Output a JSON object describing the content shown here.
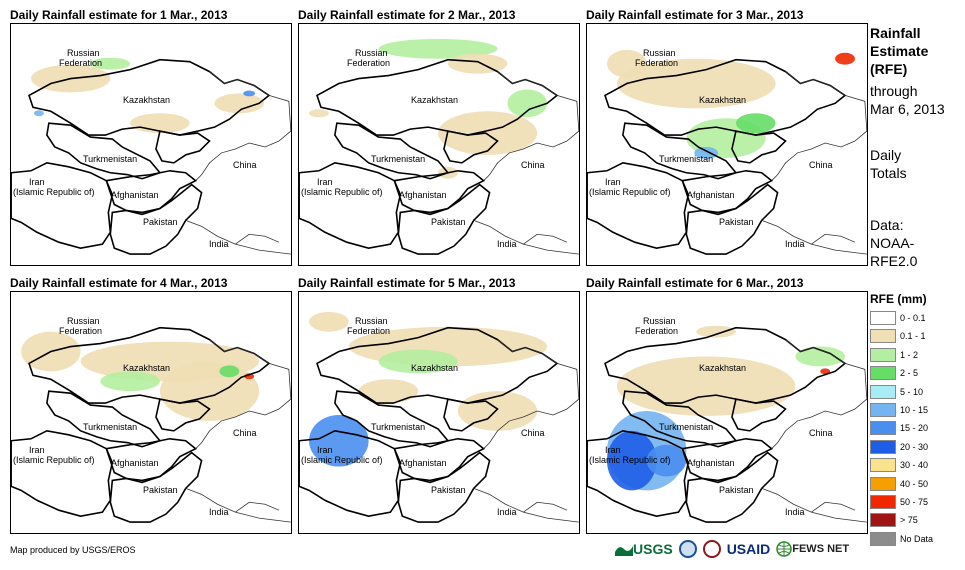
{
  "panels": [
    {
      "title": "Daily Rainfall estimate for 1 Mar., 2013"
    },
    {
      "title": "Daily Rainfall estimate for 2 Mar., 2013"
    },
    {
      "title": "Daily Rainfall estimate for 3 Mar., 2013"
    },
    {
      "title": "Daily Rainfall estimate for 4 Mar., 2013"
    },
    {
      "title": "Daily Rainfall estimate for 5 Mar., 2013"
    },
    {
      "title": "Daily Rainfall estimate for 6 Mar., 2013"
    }
  ],
  "map_labels": {
    "russia_1": "Russian",
    "russia_2": "Federation",
    "kazakhstan": "Kazakhstan",
    "turkmenistan": "Turkmenistan",
    "iran_1": "Iran",
    "iran_2": "(Islamic Republic of)",
    "afghanistan": "Afghanistan",
    "pakistan": "Pakistan",
    "china": "China",
    "india": "India"
  },
  "side_panel": {
    "title_1": "Rainfall",
    "title_2": "Estimate",
    "title_3": "(RFE)",
    "through": "through",
    "date": "Mar 6, 2013",
    "daily_1": "Daily",
    "daily_2": "Totals",
    "data_1": "Data:",
    "data_2": "NOAA-",
    "data_3": "RFE2.0"
  },
  "legend": {
    "title": "RFE (mm)",
    "items": [
      {
        "label": "0 - 0.1",
        "color": "#ffffff"
      },
      {
        "label": "0.1 - 1",
        "color": "#f0deb4"
      },
      {
        "label": "1 - 2",
        "color": "#b4eea0"
      },
      {
        "label": "2 - 5",
        "color": "#66dd66"
      },
      {
        "label": "5 - 10",
        "color": "#a8ecf4"
      },
      {
        "label": "10 - 15",
        "color": "#74b4f0"
      },
      {
        "label": "15 - 20",
        "color": "#4a8ef0"
      },
      {
        "label": "20 - 30",
        "color": "#1e5ee6"
      },
      {
        "label": "30 - 40",
        "color": "#fae38c"
      },
      {
        "label": "40 - 50",
        "color": "#f5a000"
      },
      {
        "label": "50 - 75",
        "color": "#f02800"
      },
      {
        "label": "> 75",
        "color": "#a01414"
      },
      {
        "label": "No Data",
        "color": "#8c8c8c"
      }
    ]
  },
  "footer": {
    "credit": "Map produced by USGS/EROS"
  },
  "logos": {
    "usgs": "USGS",
    "usaid": "USAID",
    "fews": "FEWS NET"
  }
}
